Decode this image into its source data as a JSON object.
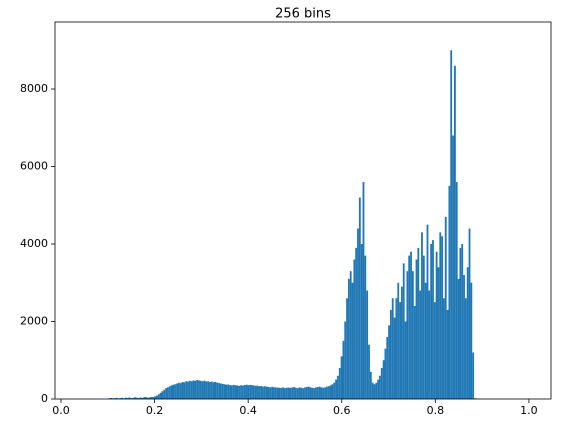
{
  "chart_data": {
    "type": "histogram",
    "title": "256 bins",
    "color": "#1f77b4",
    "grid": false,
    "xlim": [
      -0.0128,
      1.0472
    ],
    "ylim": [
      0,
      9730
    ],
    "xticks": [
      {
        "value": 0,
        "label": "0.0"
      },
      {
        "value": 0.2,
        "label": "0.2"
      },
      {
        "value": 0.4,
        "label": "0.4"
      },
      {
        "value": 0.6,
        "label": "0.6"
      },
      {
        "value": 0.8,
        "label": "0.8"
      },
      {
        "value": 1,
        "label": "1.0"
      }
    ],
    "yticks": [
      0,
      2000,
      4000,
      6000,
      8000
    ],
    "bins": [
      0,
      0.0039,
      0.0078,
      0.0117,
      0.0156,
      0.0195,
      0.0234,
      0.0273,
      0.0313,
      0.0352,
      0.0391,
      0.043,
      0.0469,
      0.0508,
      0.0547,
      0.0586,
      0.0625,
      0.0664,
      0.0703,
      0.0742,
      0.0781,
      0.082,
      0.0859,
      0.0898,
      0.0938,
      0.0977,
      0.1016,
      0.1055,
      0.1094,
      0.1133,
      0.1172,
      0.1211,
      0.125,
      0.1289,
      0.1328,
      0.1367,
      0.1406,
      0.1445,
      0.1484,
      0.1523,
      0.1563,
      0.1602,
      0.1641,
      0.168,
      0.1719,
      0.1758,
      0.1797,
      0.1836,
      0.1875,
      0.1914,
      0.1953,
      0.1992,
      0.2031,
      0.207,
      0.2109,
      0.2148,
      0.2188,
      0.2227,
      0.2266,
      0.2305,
      0.2344,
      0.2383,
      0.2422,
      0.2461,
      0.25,
      0.2539,
      0.2578,
      0.2617,
      0.2656,
      0.2695,
      0.2734,
      0.2773,
      0.2813,
      0.2852,
      0.2891,
      0.293,
      0.2969,
      0.3008,
      0.3047,
      0.3086,
      0.3125,
      0.3164,
      0.3203,
      0.3242,
      0.3281,
      0.332,
      0.3359,
      0.3398,
      0.3438,
      0.3477,
      0.3516,
      0.3555,
      0.3594,
      0.3633,
      0.3672,
      0.3711,
      0.375,
      0.3789,
      0.3828,
      0.3867,
      0.3906,
      0.3945,
      0.3984,
      0.4023,
      0.4063,
      0.4102,
      0.4141,
      0.418,
      0.4219,
      0.4258,
      0.4297,
      0.4336,
      0.4375,
      0.4414,
      0.4453,
      0.4492,
      0.4531,
      0.457,
      0.4609,
      0.4648,
      0.4688,
      0.4727,
      0.4766,
      0.4805,
      0.4844,
      0.4883,
      0.4922,
      0.4961,
      0.5,
      0.5039,
      0.5078,
      0.5117,
      0.5156,
      0.5195,
      0.5234,
      0.5273,
      0.5313,
      0.5352,
      0.5391,
      0.543,
      0.5469,
      0.5508,
      0.5547,
      0.5586,
      0.5625,
      0.5664,
      0.5703,
      0.5742,
      0.5781,
      0.582,
      0.5859,
      0.5898,
      0.5938,
      0.5977,
      0.6016,
      0.6055,
      0.6094,
      0.6133,
      0.6172,
      0.6211,
      0.625,
      0.6289,
      0.6328,
      0.6367,
      0.6406,
      0.6445,
      0.6484,
      0.6523,
      0.6563,
      0.6602,
      0.6641,
      0.668,
      0.6719,
      0.6758,
      0.6797,
      0.6836,
      0.6875,
      0.6914,
      0.6953,
      0.6992,
      0.7031,
      0.707,
      0.7109,
      0.7148,
      0.7188,
      0.7227,
      0.7266,
      0.7305,
      0.7344,
      0.7383,
      0.7422,
      0.7461,
      0.75,
      0.7539,
      0.7578,
      0.7617,
      0.7656,
      0.7695,
      0.7734,
      0.7773,
      0.7813,
      0.7852,
      0.7891,
      0.793,
      0.7969,
      0.8008,
      0.8047,
      0.8086,
      0.8125,
      0.8164,
      0.8203,
      0.8242,
      0.8281,
      0.832,
      0.8359,
      0.8398,
      0.8438,
      0.8477,
      0.8516,
      0.8555,
      0.8594,
      0.8633,
      0.8672,
      0.8711,
      0.875,
      0.8789,
      0.8828,
      0.8867,
      0.8906,
      0.8945,
      0.8984,
      0.9023,
      0.9063,
      0.9102,
      0.9141,
      0.918,
      0.9219,
      0.9258,
      0.9297,
      0.9336,
      0.9375,
      0.9414,
      0.9453,
      0.9492,
      0.9531,
      0.957,
      0.9609,
      0.9648,
      0.9688,
      0.9727,
      0.9766,
      0.9805,
      0.9844,
      0.9883,
      0.9922,
      0.9961,
      1
    ],
    "values": [
      0,
      0,
      0,
      0,
      0,
      0,
      0,
      0,
      0,
      0,
      0,
      0,
      0,
      0,
      0,
      0,
      0,
      0,
      0,
      0,
      0,
      0,
      0,
      0,
      0,
      0,
      20,
      25,
      18,
      22,
      30,
      15,
      25,
      30,
      20,
      35,
      28,
      40,
      22,
      30,
      45,
      35,
      25,
      40,
      30,
      45,
      50,
      35,
      40,
      55,
      50,
      70,
      90,
      120,
      160,
      200,
      240,
      280,
      300,
      330,
      350,
      370,
      380,
      400,
      420,
      410,
      440,
      430,
      460,
      450,
      470,
      460,
      480,
      470,
      490,
      480,
      470,
      460,
      475,
      455,
      460,
      440,
      450,
      430,
      440,
      420,
      410,
      400,
      390,
      380,
      370,
      375,
      360,
      350,
      365,
      355,
      350,
      340,
      355,
      345,
      360,
      370,
      355,
      365,
      360,
      350,
      340,
      345,
      330,
      335,
      320,
      330,
      320,
      310,
      300,
      315,
      305,
      300,
      295,
      290,
      285,
      300,
      280,
      290,
      295,
      285,
      300,
      310,
      290,
      280,
      300,
      290,
      280,
      300,
      310,
      320,
      300,
      290,
      280,
      300,
      310,
      320,
      300,
      290,
      300,
      320,
      330,
      350,
      380,
      420,
      500,
      600,
      800,
      1100,
      1500,
      2000,
      2600,
      3100,
      3300,
      3000,
      3600,
      3900,
      4400,
      5200,
      4000,
      5600,
      3700,
      2800,
      1400,
      700,
      420,
      380,
      420,
      500,
      600,
      800,
      1000,
      1300,
      1600,
      1900,
      2300,
      2600,
      2100,
      2600,
      3000,
      2500,
      2900,
      3500,
      2000,
      3300,
      3700,
      3800,
      3300,
      2400,
      3600,
      3900,
      2800,
      4300,
      3700,
      3000,
      4500,
      2800,
      4000,
      4100,
      2500,
      3800,
      3400,
      4300,
      4200,
      2600,
      4700,
      2300,
      5500,
      9000,
      6800,
      8600,
      5600,
      3100,
      3900,
      4000,
      3200,
      2600,
      3400,
      4400,
      3000,
      1200,
      20,
      10,
      5,
      0,
      0,
      0,
      0,
      0,
      0,
      0,
      0,
      0,
      0,
      0,
      0,
      0,
      0,
      0,
      0,
      0,
      0,
      0,
      0,
      0,
      0,
      0,
      0,
      0,
      5,
      5
    ]
  }
}
